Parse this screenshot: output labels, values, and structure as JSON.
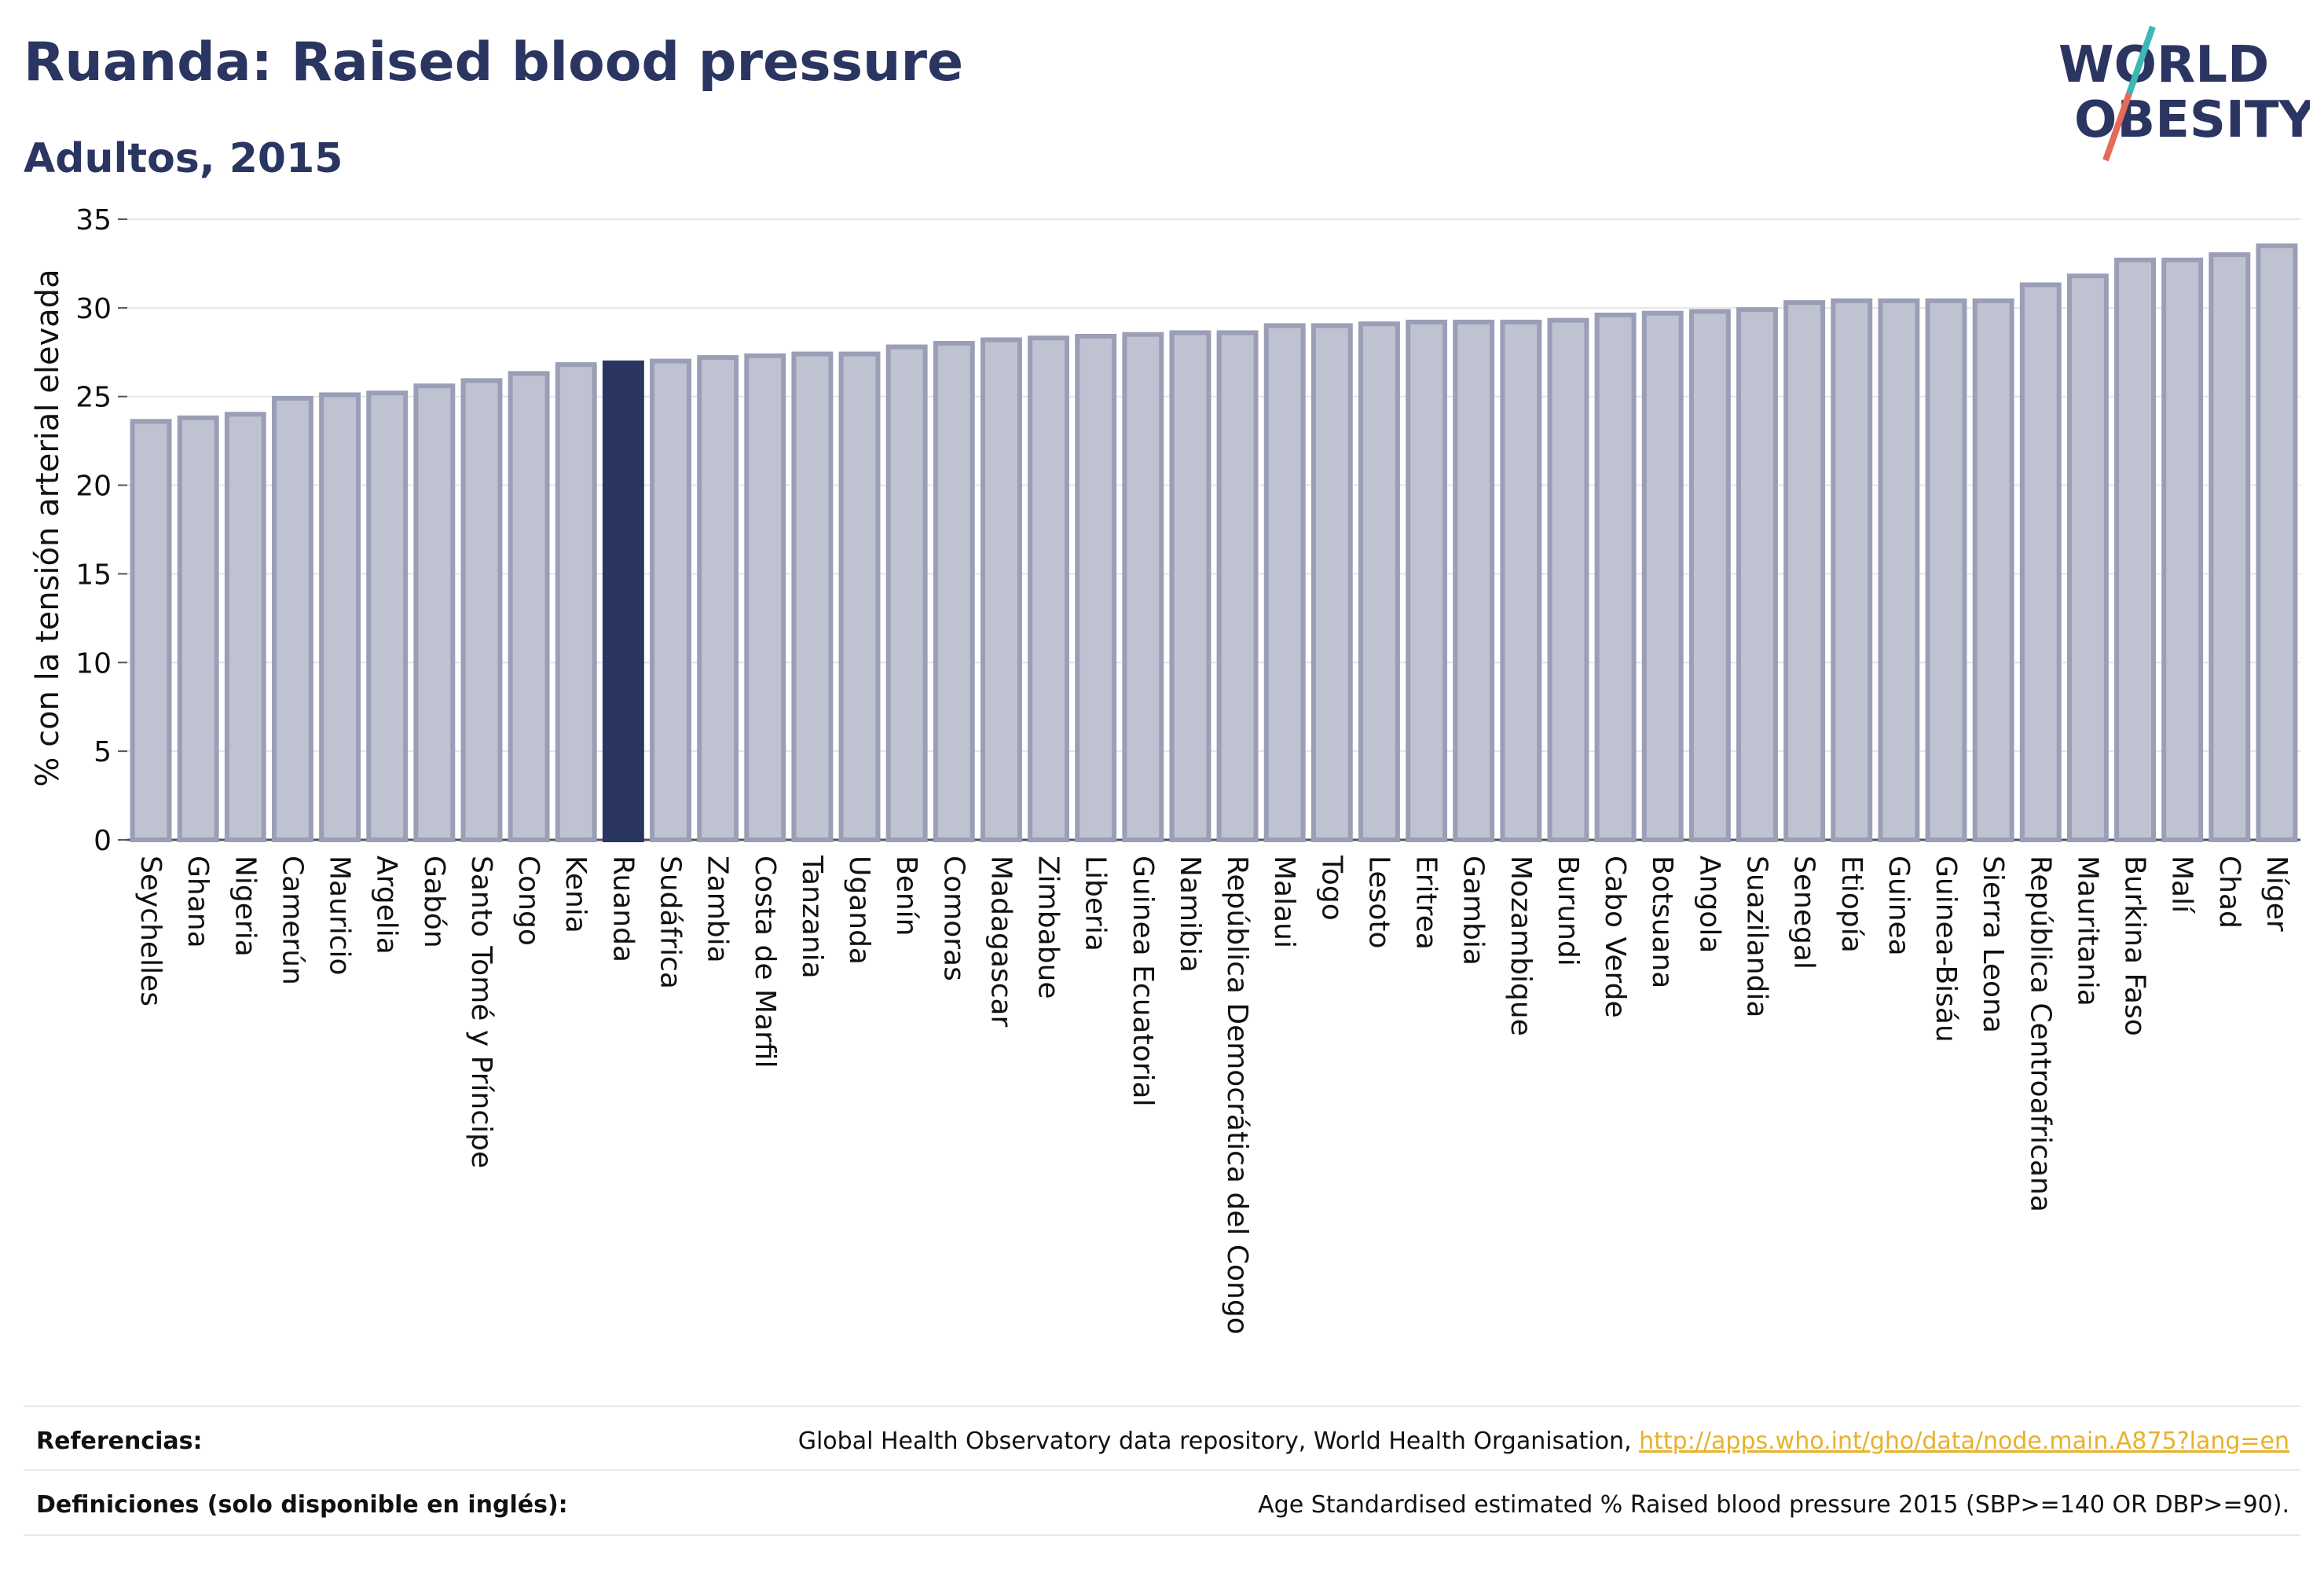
{
  "header": {
    "title": "Ruanda: Raised blood pressure",
    "subtitle": "Adultos, 2015"
  },
  "logo": {
    "line1": "WORLD",
    "line2": "OBESITY"
  },
  "colors": {
    "highlight_bar": "#2b3561",
    "normal_bar_fill": "#bfc2d0",
    "normal_bar_stroke": "#9a9eb6",
    "grid": "#e5e5ea",
    "text": "#111111",
    "link": "#e7b12a"
  },
  "chart_data": {
    "type": "bar",
    "ylabel": "% con la tensión arterial elevada",
    "ylim": [
      0,
      35
    ],
    "yticks": [
      0,
      5,
      10,
      15,
      20,
      25,
      30,
      35
    ],
    "highlight": "Ruanda",
    "categories": [
      "Seychelles",
      "Ghana",
      "Nigeria",
      "Camerún",
      "Mauricio",
      "Argelia",
      "Gabón",
      "Santo Tomé y Príncipe",
      "Congo",
      "Kenia",
      "Ruanda",
      "Sudáfrica",
      "Zambia",
      "Costa de Marfil",
      "Tanzania",
      "Uganda",
      "Benín",
      "Comoras",
      "Madagascar",
      "Zimbabue",
      "Liberia",
      "Guinea Ecuatorial",
      "Namibia",
      "República Democrática del Congo",
      "Malaui",
      "Togo",
      "Lesoto",
      "Eritrea",
      "Gambia",
      "Mozambique",
      "Burundi",
      "Cabo Verde",
      "Botsuana",
      "Angola",
      "Suazilandia",
      "Senegal",
      "Etiopía",
      "Guinea",
      "Guinea-Bisáu",
      "Sierra Leona",
      "República Centroafricana",
      "Mauritania",
      "Burkina Faso",
      "Malí",
      "Chad",
      "Níger"
    ],
    "values": [
      23.6,
      23.8,
      24.0,
      24.9,
      25.1,
      25.2,
      25.6,
      25.9,
      26.3,
      26.8,
      26.9,
      27.0,
      27.2,
      27.3,
      27.4,
      27.4,
      27.8,
      28.0,
      28.2,
      28.3,
      28.4,
      28.5,
      28.6,
      28.6,
      29.0,
      29.0,
      29.1,
      29.2,
      29.2,
      29.2,
      29.3,
      29.6,
      29.7,
      29.8,
      29.9,
      30.3,
      30.4,
      30.4,
      30.4,
      30.4,
      31.3,
      31.8,
      32.7,
      32.7,
      33.0,
      33.5
    ]
  },
  "footer": {
    "references_label": "Referencias:",
    "references_text": "Global Health Observatory data repository, World Health Organisation, ",
    "references_link": "http://apps.who.int/gho/data/node.main.A875?lang=en",
    "definitions_label": "Definiciones (solo disponible en inglés):",
    "definitions_text": "Age Standardised estimated % Raised blood pressure 2015 (SBP>=140 OR DBP>=90)."
  }
}
